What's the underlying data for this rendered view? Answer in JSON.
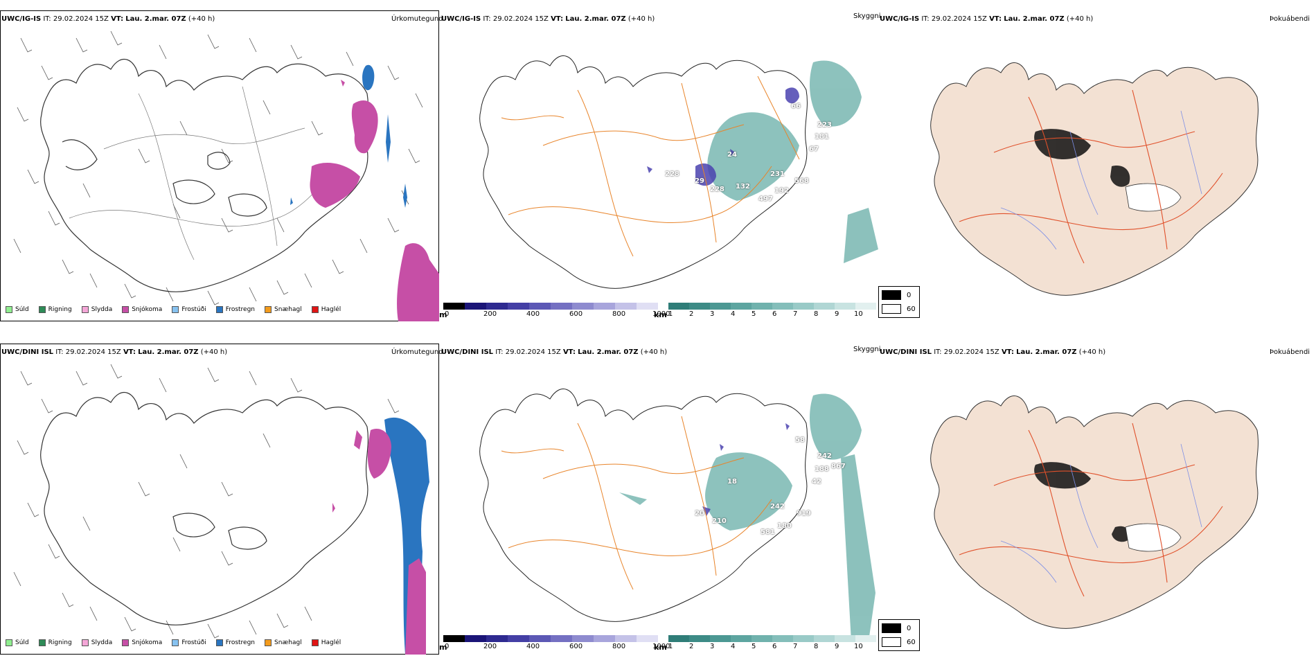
{
  "rows": [
    {
      "panels": [
        {
          "model": "UWC/IG-IS",
          "it_label": "IT:",
          "it": "29.02.2024 15Z",
          "vt_label": "VT:",
          "vt": "Lau. 2.mar. 07Z",
          "lead": "(+40 h)",
          "title": "Úrkomutegund"
        },
        {
          "model": "UWC/IG-IS",
          "it_label": "IT:",
          "it": "29.02.2024 15Z",
          "vt_label": "VT:",
          "vt": "Lau. 2.mar. 07Z",
          "lead": "(+40 h)",
          "title": "Skyggni"
        },
        {
          "model": "UWC/IG-IS",
          "it_label": "IT:",
          "it": "29.02.2024 15Z",
          "vt_label": "VT:",
          "vt": "Lau. 2.mar. 07Z",
          "lead": "(+40 h)",
          "title": "Þokuábendi"
        }
      ],
      "labels": [
        "66",
        "223",
        "181",
        "67",
        "24",
        "231",
        "568",
        "228",
        "192",
        "497",
        "228",
        "132",
        "29"
      ]
    },
    {
      "panels": [
        {
          "model": "UWC/DINI ISL",
          "it_label": "IT:",
          "it": "29.02.2024 15Z",
          "vt_label": "VT:",
          "vt": "Lau. 2.mar. 07Z",
          "lead": "(+40 h)",
          "title": "Úrkomutegund"
        },
        {
          "model": "UWC/DINI ISL",
          "it_label": "IT:",
          "it": "29.02.2024 15Z",
          "vt_label": "VT:",
          "vt": "Lau. 2.mar. 07Z",
          "lead": "(+40 h)",
          "title": "Skyggni"
        },
        {
          "model": "UWC/DINI ISL",
          "it_label": "IT:",
          "it": "29.02.2024 15Z",
          "vt_label": "VT:",
          "vt": "Lau. 2.mar. 07Z",
          "lead": "(+40 h)",
          "title": "Þokuábendi"
        }
      ],
      "labels": [
        "58",
        "242",
        "188",
        "867",
        "42",
        "18",
        "242",
        "919",
        "210",
        "180",
        "581",
        "20"
      ]
    }
  ],
  "precip_legend": [
    {
      "label": "Súld",
      "color": "#90ee90"
    },
    {
      "label": "Rigning",
      "color": "#2e8b57"
    },
    {
      "label": "Slydda",
      "color": "#f4a6d7"
    },
    {
      "label": "Snjókoma",
      "color": "#c64fa6"
    },
    {
      "label": "Frostúði",
      "color": "#87c2f0"
    },
    {
      "label": "Frostregn",
      "color": "#2a75c0"
    },
    {
      "label": "Snæhagl",
      "color": "#f39b1c"
    },
    {
      "label": "Haglél",
      "color": "#e01515"
    }
  ],
  "cloud_base_bar": {
    "unit": "m",
    "ticks": [
      "0",
      "200",
      "400",
      "600",
      "800",
      "1000"
    ]
  },
  "visibility_bar": {
    "unit": "km",
    "ticks": [
      "1",
      "2",
      "3",
      "4",
      "5",
      "6",
      "7",
      "8",
      "9",
      "10"
    ]
  },
  "fog_legend": [
    "0",
    "60"
  ],
  "colors": {
    "snow": "#c64fa6",
    "freezing_rain": "#2a75c0",
    "visibility_teal": "#2f8f86",
    "cloud_base_blue": "#4b43b0",
    "roads_orange": "#e8842a",
    "fog_land": "#f3e1d3",
    "fog_roads": "#e0502a",
    "rivers": "#7c8ee6"
  }
}
